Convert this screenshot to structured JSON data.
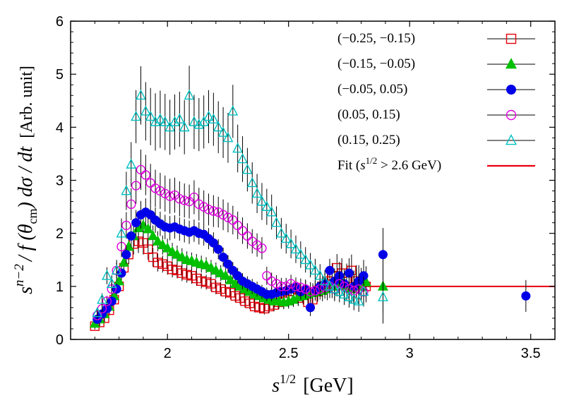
{
  "chart_data": {
    "type": "scatter",
    "xlabel": {
      "base": "s",
      "sup": "1/2",
      "rest": "[GeV]"
    },
    "ylabel": {
      "s": "s",
      "n2": "n−2",
      "f": "/ f (θ",
      "cm": "cm",
      "rest": ") dσ / dt",
      "unit": "[Arb. unit]"
    },
    "xlim": [
      1.6,
      3.6
    ],
    "ylim": [
      0,
      6
    ],
    "xticks": [
      "2",
      "2.5",
      "3",
      "3.5"
    ],
    "yticks": [
      "0",
      "1",
      "2",
      "3",
      "4",
      "5",
      "6"
    ],
    "xtick_values": [
      2,
      2.5,
      3,
      3.5
    ],
    "ytick_values": [
      0,
      1,
      2,
      3,
      4,
      5,
      6
    ],
    "grid": false,
    "legend_position": "top-right",
    "fit": {
      "name_pre": "Fit (",
      "name_s": "s",
      "name_sup": "1/2",
      "name_post": " > 2.6 GeV)",
      "y": 1.0,
      "x_start": 2.6,
      "color": "#e8000b"
    },
    "series": [
      {
        "name": "(−0.25, −0.15)",
        "marker": "square-open",
        "color": "#e8000b",
        "x": [
          1.7,
          1.72,
          1.74,
          1.76,
          1.78,
          1.8,
          1.82,
          1.84,
          1.86,
          1.88,
          1.9,
          1.92,
          1.94,
          1.96,
          1.98,
          2.0,
          2.02,
          2.04,
          2.06,
          2.08,
          2.1,
          2.12,
          2.14,
          2.16,
          2.18,
          2.2,
          2.22,
          2.24,
          2.26,
          2.28,
          2.3,
          2.32,
          2.34,
          2.36,
          2.38,
          2.4,
          2.42,
          2.44,
          2.46,
          2.48,
          2.5,
          2.52,
          2.54,
          2.56,
          2.58,
          2.6,
          2.62,
          2.64,
          2.66,
          2.68,
          2.7,
          2.72,
          2.74,
          2.76,
          2.78,
          2.8,
          2.82
        ],
        "y": [
          0.25,
          0.32,
          0.4,
          0.55,
          0.75,
          1.0,
          1.35,
          1.6,
          1.8,
          1.85,
          1.82,
          1.7,
          1.55,
          1.45,
          1.42,
          1.38,
          1.32,
          1.3,
          1.25,
          1.22,
          1.2,
          1.15,
          1.1,
          1.08,
          1.05,
          0.98,
          0.95,
          0.9,
          0.88,
          0.82,
          0.78,
          0.72,
          0.68,
          0.62,
          0.6,
          0.58,
          0.62,
          0.65,
          0.7,
          0.72,
          0.75,
          0.8,
          0.78,
          0.85,
          0.7,
          0.75,
          0.9,
          1.0,
          1.1,
          1.2,
          1.35,
          1.25,
          1.15,
          1.3,
          1.1,
          1.05,
          1.0
        ],
        "err": [
          0.06,
          0.07,
          0.08,
          0.09,
          0.1,
          0.12,
          0.15,
          0.18,
          0.2,
          0.22,
          0.22,
          0.2,
          0.18,
          0.17,
          0.16,
          0.16,
          0.15,
          0.15,
          0.15,
          0.15,
          0.15,
          0.14,
          0.14,
          0.14,
          0.14,
          0.13,
          0.13,
          0.13,
          0.12,
          0.12,
          0.12,
          0.12,
          0.11,
          0.11,
          0.11,
          0.11,
          0.12,
          0.12,
          0.13,
          0.13,
          0.14,
          0.15,
          0.15,
          0.16,
          0.16,
          0.17,
          0.18,
          0.2,
          0.22,
          0.24,
          0.26,
          0.28,
          0.28,
          0.3,
          0.3,
          0.3,
          0.3
        ]
      },
      {
        "name": "(−0.15, −0.05)",
        "marker": "triangle-filled",
        "color": "#00c000",
        "x": [
          1.7,
          1.72,
          1.74,
          1.76,
          1.78,
          1.8,
          1.82,
          1.84,
          1.86,
          1.88,
          1.9,
          1.92,
          1.94,
          1.96,
          1.98,
          2.0,
          2.02,
          2.04,
          2.06,
          2.08,
          2.1,
          2.12,
          2.14,
          2.16,
          2.18,
          2.2,
          2.22,
          2.24,
          2.26,
          2.28,
          2.3,
          2.32,
          2.34,
          2.36,
          2.38,
          2.4,
          2.42,
          2.44,
          2.46,
          2.48,
          2.5,
          2.52,
          2.54,
          2.56,
          2.58,
          2.6,
          2.62,
          2.64,
          2.66,
          2.68,
          2.7,
          2.72,
          2.74,
          2.76,
          2.78,
          2.8,
          2.82,
          2.89
        ],
        "y": [
          0.3,
          0.38,
          0.48,
          0.62,
          0.82,
          1.1,
          1.45,
          1.75,
          1.95,
          2.1,
          2.15,
          2.08,
          1.95,
          1.85,
          1.78,
          1.72,
          1.65,
          1.6,
          1.55,
          1.5,
          1.48,
          1.45,
          1.42,
          1.4,
          1.35,
          1.3,
          1.25,
          1.2,
          1.12,
          1.05,
          1.0,
          0.95,
          0.9,
          0.85,
          0.82,
          0.78,
          0.75,
          0.72,
          0.72,
          0.7,
          0.72,
          0.75,
          0.8,
          0.82,
          0.85,
          0.88,
          0.9,
          0.92,
          0.95,
          1.0,
          1.05,
          1.1,
          1.0,
          0.95,
          1.05,
          1.0,
          1.08,
          1.0
        ],
        "err": [
          0.06,
          0.07,
          0.08,
          0.09,
          0.1,
          0.12,
          0.16,
          0.2,
          0.22,
          0.24,
          0.24,
          0.22,
          0.2,
          0.19,
          0.18,
          0.18,
          0.17,
          0.17,
          0.17,
          0.16,
          0.16,
          0.16,
          0.16,
          0.15,
          0.15,
          0.15,
          0.15,
          0.14,
          0.14,
          0.14,
          0.14,
          0.13,
          0.13,
          0.13,
          0.13,
          0.13,
          0.13,
          0.13,
          0.13,
          0.13,
          0.14,
          0.14,
          0.15,
          0.16,
          0.17,
          0.18,
          0.19,
          0.2,
          0.21,
          0.22,
          0.24,
          0.25,
          0.26,
          0.27,
          0.28,
          0.29,
          0.3,
          0.7
        ]
      },
      {
        "name": "(−0.05, 0.05)",
        "marker": "circle-filled",
        "color": "#0000e8",
        "x": [
          1.71,
          1.73,
          1.75,
          1.77,
          1.79,
          1.81,
          1.83,
          1.85,
          1.87,
          1.89,
          1.91,
          1.93,
          1.95,
          1.97,
          1.99,
          2.01,
          2.03,
          2.05,
          2.07,
          2.09,
          2.11,
          2.13,
          2.15,
          2.17,
          2.19,
          2.21,
          2.23,
          2.25,
          2.27,
          2.29,
          2.31,
          2.33,
          2.35,
          2.37,
          2.39,
          2.41,
          2.43,
          2.45,
          2.47,
          2.49,
          2.51,
          2.53,
          2.55,
          2.57,
          2.59,
          2.61,
          2.63,
          2.65,
          2.67,
          2.69,
          2.71,
          2.73,
          2.75,
          2.77,
          2.79,
          2.81,
          2.89,
          3.48
        ],
        "y": [
          0.38,
          0.48,
          0.58,
          0.72,
          0.95,
          1.25,
          1.6,
          1.95,
          2.2,
          2.35,
          2.4,
          2.35,
          2.25,
          2.18,
          2.12,
          2.1,
          2.12,
          2.08,
          2.05,
          2.02,
          2.05,
          2.0,
          1.98,
          1.9,
          1.82,
          1.7,
          1.55,
          1.42,
          1.3,
          1.2,
          1.1,
          1.05,
          1.0,
          0.95,
          0.9,
          0.85,
          0.85,
          0.88,
          0.9,
          0.92,
          0.95,
          0.98,
          0.9,
          0.95,
          0.6,
          0.92,
          1.0,
          1.05,
          1.3,
          1.1,
          1.2,
          1.05,
          1.25,
          1.0,
          1.1,
          1.2,
          1.6,
          0.82
        ],
        "err": [
          0.06,
          0.07,
          0.08,
          0.09,
          0.11,
          0.13,
          0.17,
          0.21,
          0.24,
          0.26,
          0.26,
          0.25,
          0.24,
          0.23,
          0.23,
          0.23,
          0.22,
          0.22,
          0.22,
          0.22,
          0.21,
          0.21,
          0.21,
          0.2,
          0.2,
          0.19,
          0.18,
          0.17,
          0.16,
          0.15,
          0.15,
          0.14,
          0.14,
          0.14,
          0.13,
          0.13,
          0.13,
          0.13,
          0.14,
          0.14,
          0.14,
          0.15,
          0.15,
          0.16,
          0.16,
          0.17,
          0.18,
          0.2,
          0.22,
          0.24,
          0.26,
          0.27,
          0.28,
          0.3,
          0.3,
          0.3,
          0.5,
          0.3
        ]
      },
      {
        "name": "(0.05, 0.15)",
        "marker": "circle-open",
        "color": "#e000e0",
        "x": [
          1.71,
          1.73,
          1.75,
          1.77,
          1.79,
          1.81,
          1.83,
          1.85,
          1.87,
          1.89,
          1.91,
          1.93,
          1.95,
          1.97,
          1.99,
          2.01,
          2.03,
          2.05,
          2.07,
          2.09,
          2.11,
          2.13,
          2.15,
          2.17,
          2.19,
          2.21,
          2.23,
          2.25,
          2.27,
          2.29,
          2.31,
          2.33,
          2.35,
          2.37,
          2.39,
          2.41,
          2.43,
          2.45,
          2.47,
          2.49,
          2.51,
          2.53,
          2.55,
          2.57,
          2.59,
          2.61,
          2.63,
          2.65,
          2.67,
          2.69,
          2.71,
          2.73,
          2.75,
          2.77,
          2.79,
          2.81
        ],
        "y": [
          0.45,
          0.58,
          0.72,
          0.95,
          1.3,
          1.75,
          2.15,
          2.55,
          2.9,
          3.2,
          3.1,
          2.95,
          2.85,
          2.8,
          2.75,
          2.7,
          2.72,
          2.65,
          2.62,
          2.6,
          2.68,
          2.55,
          2.5,
          2.45,
          2.42,
          2.4,
          2.35,
          2.3,
          2.25,
          2.15,
          2.05,
          1.95,
          1.85,
          1.78,
          1.72,
          1.2,
          1.1,
          1.05,
          1.0,
          1.0,
          1.05,
          1.0,
          0.98,
          0.95,
          0.9,
          0.92,
          0.95,
          0.98,
          1.0,
          0.95,
          1.05,
          1.0,
          0.95,
          0.92,
          0.95,
          0.9
        ],
        "err": [
          0.07,
          0.08,
          0.1,
          0.12,
          0.15,
          0.2,
          0.25,
          0.3,
          0.34,
          0.38,
          0.38,
          0.36,
          0.35,
          0.34,
          0.34,
          0.33,
          0.33,
          0.33,
          0.32,
          0.32,
          0.32,
          0.31,
          0.31,
          0.3,
          0.3,
          0.29,
          0.29,
          0.28,
          0.27,
          0.26,
          0.25,
          0.24,
          0.23,
          0.22,
          0.21,
          0.17,
          0.16,
          0.16,
          0.16,
          0.16,
          0.17,
          0.17,
          0.17,
          0.18,
          0.18,
          0.19,
          0.2,
          0.21,
          0.22,
          0.23,
          0.24,
          0.25,
          0.26,
          0.27,
          0.28,
          0.28
        ]
      },
      {
        "name": "(0.15, 0.25)",
        "marker": "triangle-open",
        "color": "#00c0c0",
        "x": [
          1.71,
          1.73,
          1.75,
          1.77,
          1.79,
          1.81,
          1.83,
          1.85,
          1.87,
          1.89,
          1.91,
          1.93,
          1.95,
          1.97,
          1.99,
          2.01,
          2.03,
          2.05,
          2.07,
          2.09,
          2.11,
          2.13,
          2.15,
          2.17,
          2.19,
          2.21,
          2.23,
          2.25,
          2.27,
          2.29,
          2.31,
          2.33,
          2.35,
          2.37,
          2.39,
          2.41,
          2.43,
          2.45,
          2.47,
          2.49,
          2.51,
          2.53,
          2.55,
          2.57,
          2.59,
          2.61,
          2.63,
          2.65,
          2.67,
          2.69,
          2.71,
          2.73,
          2.75,
          2.77,
          2.79,
          2.81,
          2.89
        ],
        "y": [
          0.5,
          0.75,
          1.2,
          1.05,
          1.3,
          2.0,
          2.8,
          3.3,
          4.2,
          4.6,
          4.3,
          4.2,
          4.1,
          4.15,
          4.1,
          4.0,
          4.1,
          4.15,
          4.0,
          4.6,
          4.1,
          4.05,
          4.1,
          4.2,
          4.15,
          4.0,
          3.9,
          3.8,
          4.3,
          3.6,
          3.4,
          3.2,
          2.95,
          2.75,
          2.6,
          2.5,
          2.4,
          2.2,
          2.0,
          1.9,
          1.8,
          1.7,
          1.6,
          1.5,
          1.4,
          1.3,
          1.2,
          1.1,
          1.0,
          0.95,
          0.9,
          0.85,
          0.8,
          0.75,
          0.72,
          0.9,
          0.8
        ],
        "err": [
          0.1,
          0.12,
          0.16,
          0.16,
          0.2,
          0.28,
          0.36,
          0.42,
          0.5,
          0.55,
          0.55,
          0.54,
          0.54,
          0.54,
          0.53,
          0.52,
          0.52,
          0.52,
          0.51,
          0.56,
          0.51,
          0.5,
          0.5,
          0.5,
          0.5,
          0.49,
          0.48,
          0.47,
          0.5,
          0.45,
          0.43,
          0.41,
          0.39,
          0.37,
          0.35,
          0.34,
          0.33,
          0.31,
          0.29,
          0.28,
          0.27,
          0.26,
          0.25,
          0.24,
          0.23,
          0.22,
          0.22,
          0.21,
          0.2,
          0.2,
          0.2,
          0.2,
          0.2,
          0.2,
          0.2,
          0.22,
          0.3
        ]
      }
    ]
  }
}
